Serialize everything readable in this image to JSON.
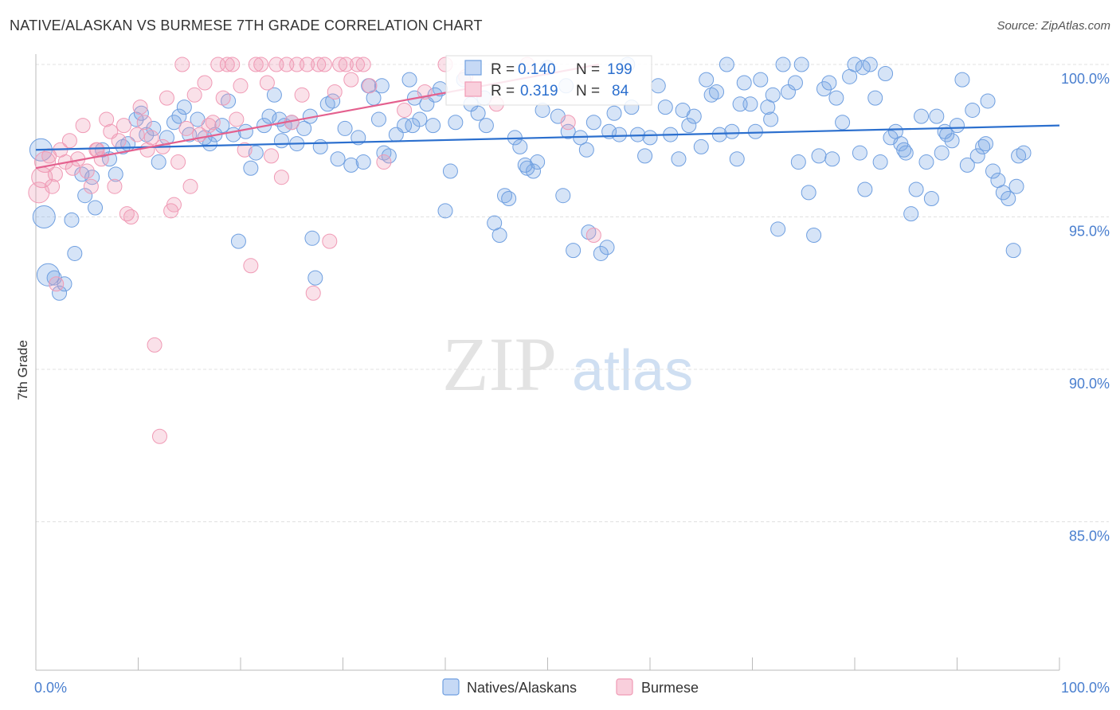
{
  "header": {
    "title": "NATIVE/ALASKAN VS BURMESE 7TH GRADE CORRELATION CHART",
    "source": "Source: ZipAtlas.com"
  },
  "watermark": {
    "zip": "ZIP",
    "atlas": "atlas"
  },
  "colors": {
    "blue": "#6f9fe0",
    "blue_line": "#2b6fce",
    "pink": "#f09ab5",
    "pink_line": "#e4608e",
    "tick_text": "#4a7fcf",
    "grid": "#e0e0e0"
  },
  "stats_box": {
    "rows": [
      {
        "r_label": "R =",
        "r_value": "0.140",
        "n_label": "N =",
        "n_value": "199"
      },
      {
        "r_label": "R =",
        "r_value": "0.319",
        "n_label": "N =",
        "n_value": "84"
      }
    ]
  },
  "legend": {
    "items": [
      "Natives/Alaskans",
      "Burmese"
    ]
  },
  "chart_data": {
    "type": "scatter",
    "title": "NATIVE/ALASKAN VS BURMESE 7TH GRADE CORRELATION CHART",
    "xlabel": "",
    "ylabel": "7th Grade",
    "xlim": [
      0,
      100
    ],
    "ylim": [
      80.5,
      100.8
    ],
    "x_tick_labels": [
      "0.0%",
      "100.0%"
    ],
    "y_ticks": [
      85.0,
      90.0,
      95.0,
      100.0
    ],
    "y_tick_labels": [
      "85.0%",
      "90.0%",
      "95.0%",
      "100.0%"
    ],
    "grid": true,
    "legend_position": "bottom-center",
    "series": [
      {
        "name": "Natives/Alaskans",
        "color": "#6f9fe0",
        "R": 0.14,
        "N": 199,
        "trend": {
          "x": [
            0,
            100
          ],
          "y": [
            97.2,
            98.0
          ]
        },
        "points": [
          [
            0.5,
            97.2
          ],
          [
            0.8,
            95.0
          ],
          [
            1.2,
            93.1
          ],
          [
            1.8,
            93.0
          ],
          [
            2.3,
            92.5
          ],
          [
            2.8,
            92.8
          ],
          [
            3.5,
            94.9
          ],
          [
            3.8,
            93.8
          ],
          [
            4.5,
            96.4
          ],
          [
            4.8,
            95.7
          ],
          [
            5.5,
            96.3
          ],
          [
            5.8,
            95.3
          ],
          [
            6.5,
            97.2
          ],
          [
            7.2,
            96.9
          ],
          [
            7.8,
            96.4
          ],
          [
            8.5,
            97.3
          ],
          [
            9.0,
            97.4
          ],
          [
            9.8,
            98.2
          ],
          [
            10.3,
            98.4
          ],
          [
            10.8,
            97.7
          ],
          [
            11.5,
            97.9
          ],
          [
            12.0,
            96.8
          ],
          [
            12.8,
            97.6
          ],
          [
            13.5,
            98.1
          ],
          [
            14.0,
            98.3
          ],
          [
            14.5,
            98.6
          ],
          [
            15.0,
            97.7
          ],
          [
            15.8,
            98.2
          ],
          [
            16.5,
            97.6
          ],
          [
            17.0,
            97.4
          ],
          [
            17.5,
            97.7
          ],
          [
            18.2,
            98.0
          ],
          [
            18.8,
            98.8
          ],
          [
            19.3,
            97.7
          ],
          [
            19.8,
            94.2
          ],
          [
            20.5,
            97.8
          ],
          [
            21.0,
            96.6
          ],
          [
            21.5,
            97.1
          ],
          [
            22.3,
            98.0
          ],
          [
            22.8,
            98.3
          ],
          [
            23.3,
            99.0
          ],
          [
            23.8,
            98.2
          ],
          [
            24.3,
            98.0
          ],
          [
            25.0,
            98.1
          ],
          [
            25.5,
            97.4
          ],
          [
            26.2,
            97.9
          ],
          [
            26.8,
            98.3
          ],
          [
            27.3,
            93.0
          ],
          [
            27.8,
            97.3
          ],
          [
            28.5,
            98.7
          ],
          [
            29.0,
            98.8
          ],
          [
            29.5,
            96.9
          ],
          [
            30.2,
            97.9
          ],
          [
            30.8,
            96.7
          ],
          [
            31.5,
            97.6
          ],
          [
            32.0,
            96.8
          ],
          [
            32.5,
            99.3
          ],
          [
            33.0,
            98.9
          ],
          [
            33.5,
            98.2
          ],
          [
            34.0,
            97.1
          ],
          [
            34.5,
            97.0
          ],
          [
            35.2,
            97.7
          ],
          [
            36.0,
            98.0
          ],
          [
            36.5,
            99.5
          ],
          [
            37.0,
            98.9
          ],
          [
            37.5,
            98.2
          ],
          [
            38.2,
            98.7
          ],
          [
            38.8,
            98.0
          ],
          [
            39.5,
            99.2
          ],
          [
            40.0,
            95.2
          ],
          [
            40.5,
            96.5
          ],
          [
            41.0,
            98.1
          ],
          [
            41.8,
            99.5
          ],
          [
            42.5,
            98.7
          ],
          [
            43.2,
            98.4
          ],
          [
            44.0,
            98.0
          ],
          [
            44.8,
            94.8
          ],
          [
            45.3,
            94.4
          ],
          [
            45.8,
            95.7
          ],
          [
            46.2,
            95.6
          ],
          [
            46.8,
            97.6
          ],
          [
            47.3,
            97.3
          ],
          [
            48.0,
            96.6
          ],
          [
            48.6,
            96.5
          ],
          [
            49.0,
            96.8
          ],
          [
            49.5,
            98.5
          ],
          [
            50.0,
            99.9
          ],
          [
            51.0,
            98.3
          ],
          [
            51.5,
            95.7
          ],
          [
            52.0,
            97.8
          ],
          [
            52.5,
            93.9
          ],
          [
            53.2,
            97.6
          ],
          [
            54.0,
            94.5
          ],
          [
            54.5,
            98.1
          ],
          [
            55.2,
            93.8
          ],
          [
            55.8,
            94.0
          ],
          [
            56.5,
            98.4
          ],
          [
            57.0,
            97.7
          ],
          [
            57.8,
            100.0
          ],
          [
            58.2,
            98.6
          ],
          [
            58.8,
            97.7
          ],
          [
            59.5,
            97.0
          ],
          [
            60.0,
            97.6
          ],
          [
            60.8,
            99.3
          ],
          [
            61.5,
            98.6
          ],
          [
            62.0,
            97.7
          ],
          [
            62.8,
            96.9
          ],
          [
            63.2,
            98.5
          ],
          [
            63.8,
            98.0
          ],
          [
            64.3,
            98.3
          ],
          [
            65.0,
            97.3
          ],
          [
            65.5,
            99.5
          ],
          [
            66.0,
            99.0
          ],
          [
            66.8,
            97.7
          ],
          [
            67.5,
            100.0
          ],
          [
            68.0,
            97.8
          ],
          [
            68.5,
            96.9
          ],
          [
            69.2,
            99.4
          ],
          [
            69.8,
            98.7
          ],
          [
            70.3,
            97.8
          ],
          [
            70.8,
            99.5
          ],
          [
            71.5,
            98.6
          ],
          [
            72.0,
            99.0
          ],
          [
            72.5,
            94.6
          ],
          [
            73.0,
            100.0
          ],
          [
            73.5,
            99.1
          ],
          [
            74.2,
            99.4
          ],
          [
            74.8,
            100.0
          ],
          [
            75.5,
            95.8
          ],
          [
            76.0,
            94.4
          ],
          [
            76.5,
            97.0
          ],
          [
            77.0,
            99.2
          ],
          [
            77.5,
            99.4
          ],
          [
            78.2,
            98.9
          ],
          [
            78.8,
            98.1
          ],
          [
            79.5,
            99.6
          ],
          [
            80.0,
            100.0
          ],
          [
            80.5,
            97.1
          ],
          [
            81.0,
            95.9
          ],
          [
            81.5,
            100.0
          ],
          [
            82.0,
            98.9
          ],
          [
            82.5,
            96.8
          ],
          [
            83.0,
            99.7
          ],
          [
            83.5,
            97.6
          ],
          [
            84.0,
            97.8
          ],
          [
            84.5,
            97.4
          ],
          [
            85.0,
            97.1
          ],
          [
            85.5,
            95.1
          ],
          [
            86.0,
            95.9
          ],
          [
            86.5,
            98.3
          ],
          [
            87.0,
            96.8
          ],
          [
            87.5,
            95.6
          ],
          [
            88.0,
            98.3
          ],
          [
            88.5,
            97.1
          ],
          [
            89.0,
            97.7
          ],
          [
            89.5,
            97.5
          ],
          [
            90.0,
            98.0
          ],
          [
            90.5,
            99.5
          ],
          [
            91.0,
            96.7
          ],
          [
            91.5,
            98.5
          ],
          [
            92.0,
            97.0
          ],
          [
            92.5,
            97.3
          ],
          [
            93.0,
            98.8
          ],
          [
            93.5,
            96.5
          ],
          [
            94.0,
            96.2
          ],
          [
            94.5,
            95.8
          ],
          [
            95.0,
            95.6
          ],
          [
            95.5,
            93.9
          ],
          [
            96.0,
            97.0
          ],
          [
            96.5,
            97.1
          ],
          [
            66.5,
            99.1
          ],
          [
            68.8,
            98.7
          ],
          [
            71.8,
            98.2
          ],
          [
            74.5,
            96.8
          ],
          [
            77.8,
            96.9
          ],
          [
            80.8,
            99.9
          ],
          [
            84.8,
            97.2
          ],
          [
            88.8,
            97.8
          ],
          [
            92.8,
            97.4
          ],
          [
            95.8,
            96.0
          ],
          [
            24.0,
            97.5
          ],
          [
            27.0,
            94.3
          ],
          [
            33.8,
            99.3
          ],
          [
            36.8,
            98.0
          ],
          [
            39.0,
            99.0
          ],
          [
            43.8,
            98.9
          ],
          [
            47.8,
            96.7
          ],
          [
            51.8,
            99.3
          ],
          [
            53.8,
            97.2
          ],
          [
            56.0,
            97.8
          ]
        ]
      },
      {
        "name": "Burmese",
        "color": "#f09ab5",
        "R": 0.319,
        "N": 84,
        "trend": {
          "x": [
            0,
            55
          ],
          "y": [
            96.6,
            100.0
          ]
        },
        "points": [
          [
            0.3,
            95.8
          ],
          [
            0.6,
            96.3
          ],
          [
            0.9,
            96.8
          ],
          [
            1.3,
            97.0
          ],
          [
            1.6,
            96.0
          ],
          [
            1.9,
            96.4
          ],
          [
            2.4,
            97.2
          ],
          [
            2.9,
            96.8
          ],
          [
            3.3,
            97.5
          ],
          [
            3.6,
            96.6
          ],
          [
            4.1,
            96.9
          ],
          [
            4.6,
            98.0
          ],
          [
            5.0,
            96.5
          ],
          [
            5.4,
            96.0
          ],
          [
            5.9,
            97.2
          ],
          [
            6.4,
            96.9
          ],
          [
            6.9,
            98.2
          ],
          [
            7.3,
            97.8
          ],
          [
            7.7,
            96.0
          ],
          [
            8.1,
            97.5
          ],
          [
            8.6,
            98.0
          ],
          [
            8.9,
            95.1
          ],
          [
            9.3,
            95.0
          ],
          [
            9.9,
            97.7
          ],
          [
            10.2,
            98.6
          ],
          [
            10.6,
            98.1
          ],
          [
            10.9,
            97.2
          ],
          [
            11.3,
            97.6
          ],
          [
            11.6,
            90.8
          ],
          [
            12.1,
            87.8
          ],
          [
            12.4,
            97.3
          ],
          [
            12.8,
            98.9
          ],
          [
            13.2,
            95.2
          ],
          [
            13.5,
            95.4
          ],
          [
            13.9,
            96.8
          ],
          [
            14.3,
            100.0
          ],
          [
            14.7,
            97.9
          ],
          [
            15.1,
            96.0
          ],
          [
            15.5,
            99.0
          ],
          [
            16.0,
            97.7
          ],
          [
            16.5,
            99.4
          ],
          [
            16.9,
            98.0
          ],
          [
            17.3,
            98.1
          ],
          [
            17.8,
            100.0
          ],
          [
            18.3,
            98.9
          ],
          [
            18.7,
            100.0
          ],
          [
            19.2,
            100.0
          ],
          [
            19.6,
            98.2
          ],
          [
            20.0,
            99.3
          ],
          [
            20.4,
            97.2
          ],
          [
            21.0,
            93.4
          ],
          [
            21.5,
            100.0
          ],
          [
            22.0,
            100.0
          ],
          [
            22.6,
            99.4
          ],
          [
            23.0,
            97.0
          ],
          [
            23.5,
            100.0
          ],
          [
            24.0,
            96.3
          ],
          [
            24.5,
            100.0
          ],
          [
            25.0,
            98.1
          ],
          [
            25.5,
            100.0
          ],
          [
            26.0,
            99.0
          ],
          [
            26.5,
            100.0
          ],
          [
            27.1,
            92.5
          ],
          [
            27.6,
            100.0
          ],
          [
            28.2,
            100.0
          ],
          [
            28.7,
            94.2
          ],
          [
            29.2,
            99.1
          ],
          [
            29.7,
            100.0
          ],
          [
            30.3,
            100.0
          ],
          [
            30.8,
            99.5
          ],
          [
            31.4,
            100.0
          ],
          [
            32.0,
            100.0
          ],
          [
            32.6,
            99.3
          ],
          [
            34.0,
            96.8
          ],
          [
            36.0,
            98.5
          ],
          [
            38.0,
            99.1
          ],
          [
            40.0,
            100.0
          ],
          [
            42.0,
            99.6
          ],
          [
            45.0,
            98.7
          ],
          [
            48.0,
            100.0
          ],
          [
            52.0,
            98.1
          ],
          [
            54.5,
            94.4
          ],
          [
            2.0,
            92.8
          ],
          [
            6.0,
            97.2
          ]
        ]
      }
    ]
  }
}
